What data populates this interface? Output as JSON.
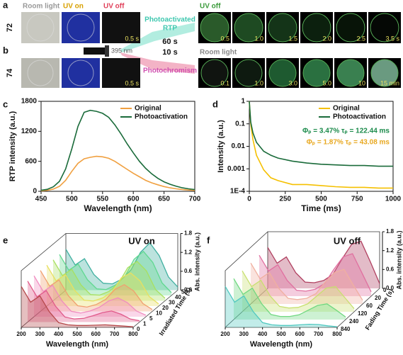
{
  "panel_labels": [
    "a",
    "b",
    "c",
    "d",
    "e",
    "f"
  ],
  "photos": {
    "tile_titles": [
      "Room light",
      "UV on",
      "UV off"
    ],
    "light_source": "395 nm",
    "paths": [
      {
        "label_lines": [
          "Photoactivated",
          "RTP"
        ],
        "time": "60 s"
      },
      {
        "label_lines": [
          "Photochromism"
        ],
        "time": "10 s"
      }
    ],
    "rows": [
      {
        "label": "72",
        "first_time": "0.5 s",
        "sequence_title": "UV off",
        "sequence": [
          "0.5",
          "1.0",
          "1.5",
          "2.0",
          "2.5",
          "3.5 s"
        ]
      },
      {
        "label": "74",
        "first_time": "0.5 s",
        "sequence_title": "Room light",
        "sequence": [
          "0.1",
          "1.0",
          "3.0",
          "5.0",
          "10",
          "15 min"
        ]
      }
    ]
  },
  "chart_data": [
    {
      "type": "line",
      "x_label": "Wavelength (nm)",
      "y_label": "RTP intensity (a.u.)",
      "x": [
        450,
        460,
        470,
        480,
        490,
        500,
        510,
        520,
        530,
        540,
        550,
        560,
        570,
        580,
        590,
        600,
        610,
        620,
        630,
        640,
        650,
        660,
        670,
        680,
        690,
        700
      ],
      "series": [
        {
          "name": "Original",
          "color": "#f0a040",
          "values": [
            10,
            20,
            45,
            100,
            220,
            400,
            560,
            650,
            680,
            700,
            690,
            660,
            600,
            520,
            440,
            360,
            290,
            220,
            170,
            130,
            95,
            70,
            50,
            35,
            25,
            18
          ]
        },
        {
          "name": "Photoactivation",
          "color": "#1a6b3a",
          "values": [
            20,
            40,
            90,
            200,
            450,
            850,
            1300,
            1580,
            1620,
            1600,
            1560,
            1480,
            1330,
            1150,
            950,
            770,
            600,
            460,
            350,
            260,
            190,
            140,
            100,
            70,
            50,
            35
          ]
        }
      ],
      "xlim": [
        450,
        700
      ],
      "xticks": [
        450,
        500,
        550,
        600,
        650,
        700
      ],
      "ylim": [
        0,
        1800
      ],
      "yticks": [
        0,
        600,
        1200,
        1800
      ],
      "legend": "top-right",
      "log_y": false
    },
    {
      "type": "line",
      "x_label": "Time (ms)",
      "y_label": "Intensity (a.u.)",
      "x": [
        0,
        10,
        25,
        50,
        100,
        150,
        200,
        300,
        400,
        500,
        600,
        700,
        800,
        900,
        1000
      ],
      "series": [
        {
          "name": "Original",
          "color": "#f5c000",
          "values": [
            1,
            0.1,
            0.02,
            0.004,
            0.0009,
            0.0004,
            0.0003,
            0.0002,
            0.0002,
            0.00018,
            0.00016,
            0.00015,
            0.00015,
            0.00014,
            0.00014
          ]
        },
        {
          "name": "Photoactivation",
          "color": "#1a6b3a",
          "values": [
            1,
            0.12,
            0.04,
            0.015,
            0.006,
            0.004,
            0.003,
            0.0022,
            0.0018,
            0.0016,
            0.0015,
            0.0014,
            0.0014,
            0.0013,
            0.0013
          ]
        }
      ],
      "annotations": [
        {
          "text": "Φₚ = 3.47%  τₚ = 122.44 ms",
          "color": "#1a8a4a"
        },
        {
          "text": "Φₚ = 1.87%  τₚ = 43.08 ms",
          "color": "#e8a820"
        }
      ],
      "xlim": [
        0,
        1000
      ],
      "xticks": [
        0,
        250,
        500,
        750,
        1000
      ],
      "ylim": [
        0.0001,
        1
      ],
      "yticks": [
        {
          "value": 0.0001,
          "label": "1E-4"
        },
        0.001,
        0.01,
        0.1,
        1
      ],
      "legend": "top-right",
      "log_y": true
    },
    {
      "type": "waterfall",
      "title": "UV on",
      "x_label": "Wavelength (nm)",
      "z_label": "Abs. intensity (a.u.)",
      "depth_label": "Irradiated Time (s)",
      "x": [
        200,
        250,
        300,
        350,
        400,
        450,
        500,
        550,
        600,
        650,
        700,
        750,
        800
      ],
      "series": [
        {
          "name": "0",
          "color": "#b5484a",
          "values": [
            1.3,
            0.8,
            1.0,
            0.5,
            0.15,
            0.08,
            0.06,
            0.06,
            0.07,
            0.08,
            0.06,
            0.04,
            0.02
          ]
        },
        {
          "name": "1",
          "color": "#e05a8a",
          "values": [
            1.3,
            0.8,
            1.0,
            0.5,
            0.16,
            0.1,
            0.12,
            0.2,
            0.3,
            0.35,
            0.25,
            0.1,
            0.04
          ]
        },
        {
          "name": "5",
          "color": "#f08cc0",
          "values": [
            1.3,
            0.8,
            1.0,
            0.5,
            0.17,
            0.12,
            0.18,
            0.3,
            0.5,
            0.6,
            0.45,
            0.18,
            0.05
          ]
        },
        {
          "name": "10",
          "color": "#f0a070",
          "values": [
            1.3,
            0.8,
            1.0,
            0.5,
            0.18,
            0.14,
            0.22,
            0.38,
            0.7,
            0.85,
            0.65,
            0.25,
            0.06
          ]
        },
        {
          "name": "20",
          "color": "#e8e060",
          "values": [
            1.3,
            0.8,
            1.0,
            0.5,
            0.19,
            0.16,
            0.26,
            0.45,
            0.9,
            1.05,
            0.8,
            0.3,
            0.07
          ]
        },
        {
          "name": "30",
          "color": "#a8e060",
          "values": [
            1.3,
            0.8,
            1.0,
            0.5,
            0.2,
            0.18,
            0.3,
            0.55,
            1.05,
            1.25,
            0.95,
            0.35,
            0.08
          ]
        },
        {
          "name": "40",
          "color": "#60d890",
          "values": [
            1.3,
            0.8,
            1.0,
            0.5,
            0.21,
            0.19,
            0.33,
            0.6,
            1.15,
            1.4,
            1.05,
            0.4,
            0.09
          ]
        },
        {
          "name": "50",
          "color": "#40b0a0",
          "values": [
            1.3,
            0.8,
            1.0,
            0.5,
            0.22,
            0.2,
            0.35,
            0.65,
            1.2,
            1.5,
            1.1,
            0.42,
            0.1
          ]
        }
      ],
      "xlim": [
        200,
        800
      ],
      "xticks": [
        200,
        300,
        400,
        500,
        600,
        700,
        800
      ],
      "zlim": [
        0,
        1.8
      ],
      "zticks": [
        {
          "value": 0,
          "label": "0.0"
        },
        0.6,
        1.2,
        1.8
      ]
    },
    {
      "type": "waterfall",
      "title": "UV off",
      "x_label": "Wavelength (nm)",
      "z_label": "Abs. intensity (a.u.)",
      "depth_label": "Fading Time (s)",
      "x": [
        200,
        250,
        300,
        350,
        400,
        450,
        500,
        550,
        600,
        650,
        700,
        750,
        800
      ],
      "series": [
        {
          "name": "840",
          "color": "#50c8c0",
          "values": [
            1.3,
            0.8,
            1.0,
            0.5,
            0.15,
            0.08,
            0.06,
            0.06,
            0.08,
            0.1,
            0.09,
            0.05,
            0.02
          ]
        },
        {
          "name": "240",
          "color": "#70d880",
          "values": [
            1.3,
            0.8,
            1.0,
            0.5,
            0.16,
            0.1,
            0.1,
            0.15,
            0.3,
            0.45,
            0.5,
            0.3,
            0.08
          ]
        },
        {
          "name": "120",
          "color": "#c8e070",
          "values": [
            1.3,
            0.8,
            1.0,
            0.5,
            0.17,
            0.12,
            0.14,
            0.25,
            0.5,
            0.75,
            0.8,
            0.45,
            0.1
          ]
        },
        {
          "name": "60",
          "color": "#f0b0a0",
          "values": [
            1.3,
            0.8,
            1.0,
            0.5,
            0.18,
            0.14,
            0.18,
            0.33,
            0.7,
            1.0,
            1.1,
            0.6,
            0.12
          ]
        },
        {
          "name": "20",
          "color": "#e070a0",
          "values": [
            1.3,
            0.8,
            1.0,
            0.5,
            0.19,
            0.16,
            0.22,
            0.4,
            0.85,
            1.25,
            1.35,
            0.75,
            0.14
          ]
        },
        {
          "name": "0",
          "color": "#b04060",
          "values": [
            1.3,
            0.8,
            1.0,
            0.5,
            0.2,
            0.18,
            0.25,
            0.45,
            0.95,
            1.4,
            1.5,
            0.85,
            0.15
          ]
        }
      ],
      "xlim": [
        200,
        800
      ],
      "xticks": [
        200,
        300,
        400,
        500,
        600,
        700,
        800
      ],
      "zlim": [
        0,
        1.8
      ],
      "zticks": [
        {
          "value": 0,
          "label": "0.0"
        },
        0.6,
        1.2,
        1.8
      ]
    }
  ]
}
